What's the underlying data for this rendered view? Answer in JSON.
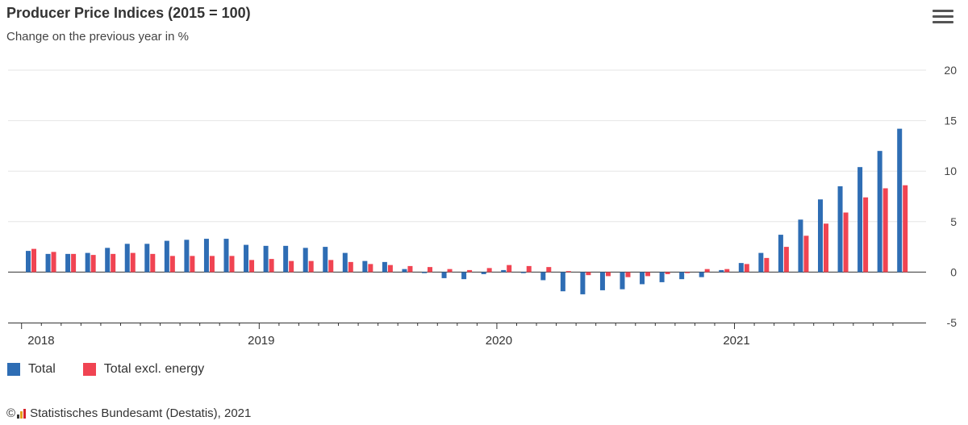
{
  "title": "Producer Price Indices (2015 = 100)",
  "subtitle": "Change on the previous year in %",
  "menu_icon": "hamburger-menu-icon",
  "footer": {
    "copyright_symbol": "©",
    "source": "Statistisches Bundesamt (Destatis), 2021"
  },
  "colors": {
    "total": "#2e6db4",
    "excl_energy": "#f04452",
    "grid": "#e6e6e6",
    "axis": "#333333"
  },
  "chart_data": {
    "type": "bar",
    "title": "Producer Price Indices (2015 = 100)",
    "subtitle": "Change on the previous year in %",
    "ylim": [
      -5,
      20
    ],
    "yticks": [
      -5,
      0,
      5,
      10,
      15,
      20
    ],
    "y_axis_side": "right",
    "grid": true,
    "legend_position": "bottom-left",
    "xtick_labels": [
      "2018",
      "2019",
      "2020",
      "2021"
    ],
    "categories": [
      "2018-01",
      "2018-02",
      "2018-03",
      "2018-04",
      "2018-05",
      "2018-06",
      "2018-07",
      "2018-08",
      "2018-09",
      "2018-10",
      "2018-11",
      "2018-12",
      "2019-01",
      "2019-02",
      "2019-03",
      "2019-04",
      "2019-05",
      "2019-06",
      "2019-07",
      "2019-08",
      "2019-09",
      "2019-10",
      "2019-11",
      "2019-12",
      "2020-01",
      "2020-02",
      "2020-03",
      "2020-04",
      "2020-05",
      "2020-06",
      "2020-07",
      "2020-08",
      "2020-09",
      "2020-10",
      "2020-11",
      "2020-12",
      "2021-01",
      "2021-02",
      "2021-03",
      "2021-04",
      "2021-05",
      "2021-06",
      "2021-07",
      "2021-08",
      "2021-09"
    ],
    "series": [
      {
        "name": "Total",
        "values": [
          2.1,
          1.8,
          1.8,
          1.9,
          2.4,
          2.8,
          2.8,
          3.1,
          3.2,
          3.3,
          3.3,
          2.7,
          2.6,
          2.6,
          2.4,
          2.5,
          1.9,
          1.1,
          1.0,
          0.3,
          -0.1,
          -0.6,
          -0.7,
          -0.2,
          0.2,
          -0.1,
          -0.8,
          -1.9,
          -2.2,
          -1.8,
          -1.7,
          -1.2,
          -1.0,
          -0.7,
          -0.5,
          0.2,
          0.9,
          1.9,
          3.7,
          5.2,
          7.2,
          8.5,
          10.4,
          12.0,
          14.2
        ]
      },
      {
        "name": "Total excl. energy",
        "values": [
          2.3,
          2.0,
          1.8,
          1.7,
          1.8,
          1.9,
          1.8,
          1.6,
          1.6,
          1.6,
          1.6,
          1.2,
          1.3,
          1.1,
          1.1,
          1.2,
          1.0,
          0.8,
          0.7,
          0.6,
          0.5,
          0.3,
          0.2,
          0.4,
          0.7,
          0.6,
          0.5,
          0.1,
          -0.3,
          -0.4,
          -0.5,
          -0.4,
          -0.2,
          -0.1,
          0.3,
          0.3,
          0.8,
          1.4,
          2.5,
          3.6,
          4.8,
          5.9,
          7.4,
          8.3,
          8.6
        ]
      }
    ]
  }
}
